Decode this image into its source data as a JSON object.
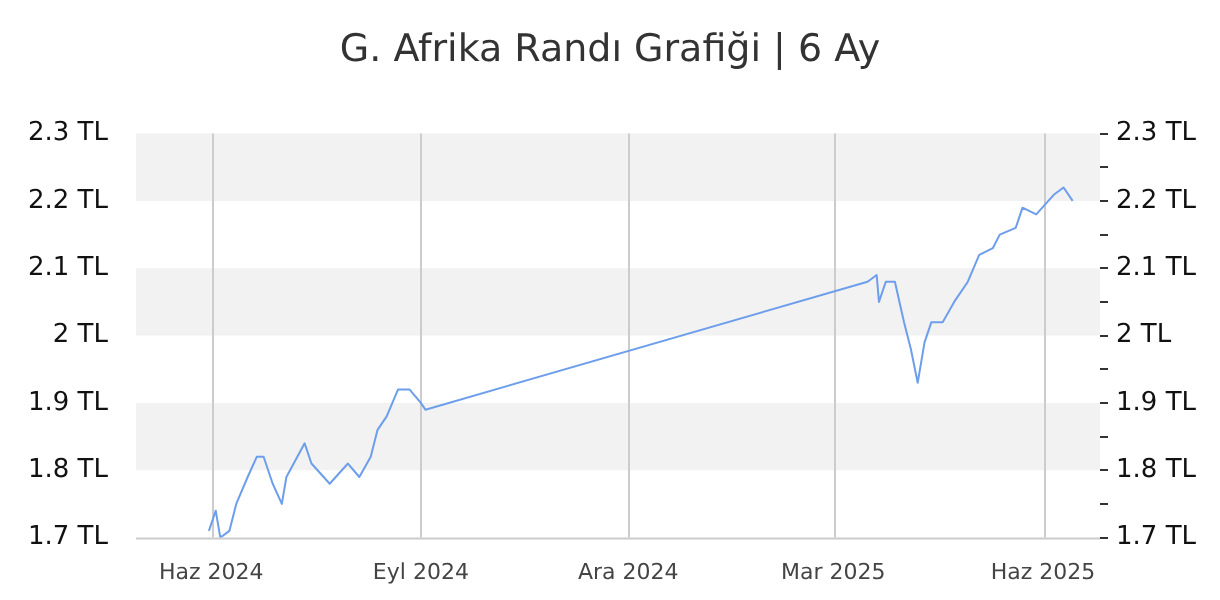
{
  "chart_data": {
    "type": "line",
    "title": "G. Afrika Randı Grafiği | 6 Ay",
    "x": [
      "2024-05-31",
      "2024-06-03",
      "2024-06-05",
      "2024-06-09",
      "2024-06-12",
      "2024-06-17",
      "2024-06-21",
      "2024-06-24",
      "2024-06-28",
      "2024-07-02",
      "2024-07-04",
      "2024-07-12",
      "2024-07-15",
      "2024-07-23",
      "2024-07-31",
      "2024-08-05",
      "2024-08-10",
      "2024-08-13",
      "2024-08-17",
      "2024-08-22",
      "2024-08-27",
      "2024-09-01",
      "2024-09-03",
      "2025-03-16",
      "2025-03-20",
      "2025-03-21",
      "2025-03-24",
      "2025-03-28",
      "2025-03-30",
      "2025-04-01",
      "2025-04-04",
      "2025-04-07",
      "2025-04-10",
      "2025-04-13",
      "2025-04-18",
      "2025-04-23",
      "2025-04-29",
      "2025-05-04",
      "2025-05-10",
      "2025-05-13",
      "2025-05-20",
      "2025-05-23",
      "2025-05-29",
      "2025-06-06",
      "2025-06-10",
      "2025-06-14"
    ],
    "series": [
      {
        "color": "#6d9eeb",
        "values": [
          1.71,
          1.74,
          1.7,
          1.71,
          1.75,
          1.79,
          1.82,
          1.82,
          1.78,
          1.75,
          1.79,
          1.84,
          1.81,
          1.78,
          1.81,
          1.79,
          1.82,
          1.86,
          1.88,
          1.92,
          1.92,
          1.9,
          1.89,
          2.08,
          2.09,
          2.05,
          2.08,
          2.08,
          2.05,
          2.02,
          1.98,
          1.93,
          1.99,
          2.02,
          2.02,
          2.05,
          2.08,
          2.12,
          2.13,
          2.15,
          2.16,
          2.19,
          2.18,
          2.21,
          2.22,
          2.2
        ]
      }
    ],
    "xlim": [
      "2024-04-29",
      "2025-06-26"
    ],
    "xticks": [
      {
        "value": "2024-06-01",
        "label": "Haz 2024"
      },
      {
        "value": "2024-09-01",
        "label": "Eyl 2024"
      },
      {
        "value": "2024-12-01",
        "label": "Ara 2024"
      },
      {
        "value": "2025-03-01",
        "label": "Mar 2025"
      },
      {
        "value": "2025-06-01",
        "label": "Haz 2025"
      }
    ],
    "ylim": [
      1.7,
      2.3
    ],
    "yticks": [
      {
        "value": 1.7,
        "label": "1.7 TL"
      },
      {
        "value": 1.8,
        "label": "1.8 TL"
      },
      {
        "value": 1.9,
        "label": "1.9 TL"
      },
      {
        "value": 2,
        "label": "2 TL"
      },
      {
        "value": 2.1,
        "label": "2.1 TL"
      },
      {
        "value": 2.2,
        "label": "2.2 TL"
      },
      {
        "value": 2.3,
        "label": "2.3 TL"
      }
    ],
    "y2lim": [
      1.7,
      2.3
    ],
    "y2ticks": [
      {
        "value": 1.7,
        "label": "1.7 TL"
      },
      {
        "value": 1.75,
        "label": null
      },
      {
        "value": 1.8,
        "label": "1.8 TL"
      },
      {
        "value": 1.85,
        "label": null
      },
      {
        "value": 1.9,
        "label": "1.9 TL"
      },
      {
        "value": 1.95,
        "label": null
      },
      {
        "value": 2,
        "label": "2 TL"
      },
      {
        "value": 2.05,
        "label": null
      },
      {
        "value": 2.1,
        "label": "2.1 TL"
      },
      {
        "value": 2.15,
        "label": null
      },
      {
        "value": 2.2,
        "label": "2.2 TL"
      },
      {
        "value": 2.25,
        "label": null
      },
      {
        "value": 2.3,
        "label": "2.3 TL"
      }
    ],
    "grid": true,
    "legend": false,
    "marker": "none",
    "line_style": "solid"
  }
}
